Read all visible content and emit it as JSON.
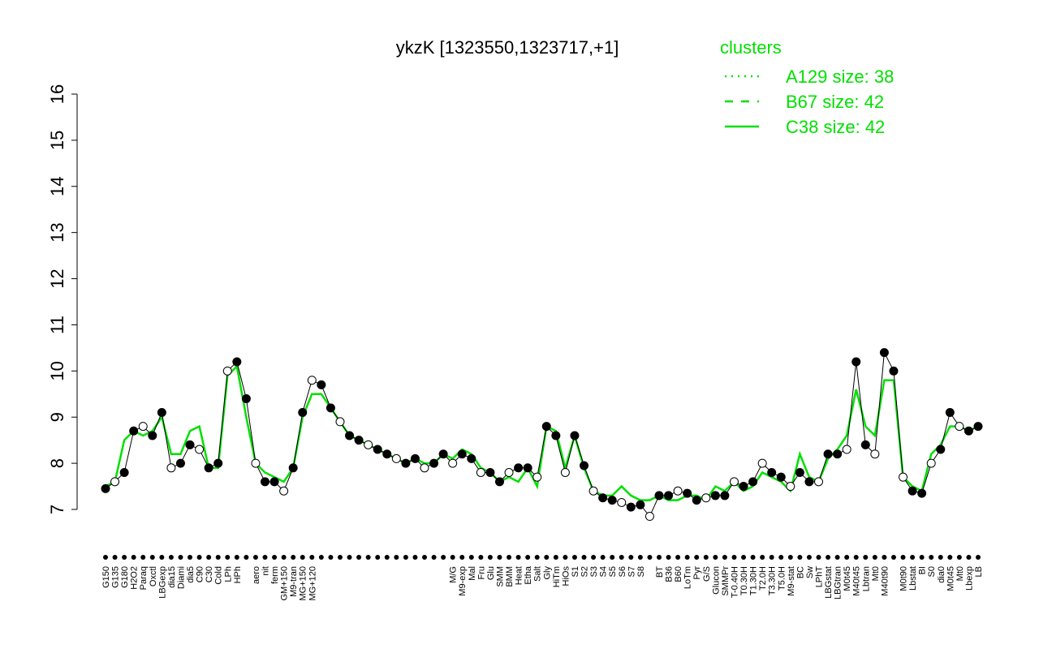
{
  "chart_data": {
    "type": "line",
    "title": "ykzK [1323550,1323717,+1]",
    "ylim": [
      7,
      16
    ],
    "yticks": [
      7,
      8,
      9,
      10,
      11,
      12,
      13,
      14,
      15,
      16
    ],
    "categories": [
      "G150",
      "G135",
      "G180",
      "H2O2",
      "Paraq",
      "Oxctl",
      "LBGexp",
      "dia15",
      "Diami",
      "dia5",
      "C90",
      "C30",
      "Cold",
      "LPh",
      "HPh",
      null,
      "aero",
      "nit",
      "ferm",
      "GM+150",
      "M9-tran",
      "MG+150",
      "MG+120",
      null,
      null,
      null,
      null,
      null,
      null,
      null,
      null,
      null,
      null,
      null,
      null,
      null,
      null,
      "M/G",
      "M9-exp",
      "Mal",
      "Fru",
      "Glu",
      "SMM",
      "BMM",
      "Heat",
      "Etha",
      "Salt",
      "Gly",
      "HiTm",
      "HiOs",
      "S1",
      "S2",
      "S3",
      "S4",
      "S5",
      "S6",
      "S7",
      "S8",
      null,
      "BT",
      "B36",
      "B60",
      "LoTm",
      "Pyr",
      "G/S",
      "Glucon",
      "SMMPr",
      "T-0.40H",
      "T0.30H",
      "T1.30H",
      "T2.0H",
      "T3.30H",
      "T5.0H",
      "M9-stat",
      "BC",
      "Sw",
      "LPhT",
      "LBGstat",
      "LBGtran",
      "M0t45",
      "M40t45",
      "Lbtran",
      "Mt0",
      "M40t90",
      null,
      "M0t90",
      "Lbstat",
      "BI",
      "S0",
      "dia0",
      "M0t45",
      "Mt0",
      "Lbexp",
      "LB"
    ],
    "values": [
      7.45,
      7.6,
      7.8,
      8.7,
      8.8,
      8.6,
      9.1,
      7.9,
      8.0,
      8.4,
      8.3,
      7.9,
      8.0,
      10.0,
      10.2,
      9.4,
      8.0,
      7.6,
      7.6,
      7.4,
      7.9,
      9.1,
      9.8,
      9.7,
      9.2,
      8.9,
      8.6,
      8.5,
      8.4,
      8.3,
      8.2,
      8.1,
      8.0,
      8.1,
      7.9,
      8.0,
      8.2,
      8.0,
      8.2,
      8.1,
      7.8,
      7.8,
      7.6,
      7.8,
      7.9,
      7.9,
      7.7,
      8.8,
      8.6,
      7.8,
      8.6,
      7.95,
      7.4,
      7.25,
      7.2,
      7.15,
      7.05,
      7.1,
      6.85,
      7.3,
      7.3,
      7.4,
      7.35,
      7.2,
      7.25,
      7.3,
      7.3,
      7.6,
      7.5,
      7.6,
      8.0,
      7.8,
      7.7,
      7.5,
      7.8,
      7.6,
      7.6,
      8.2,
      8.2,
      8.3,
      10.2,
      8.4,
      8.2,
      10.4,
      10.0,
      7.7,
      7.4,
      7.35,
      8.0,
      8.3,
      9.1,
      8.8,
      8.7,
      8.8
    ],
    "line": {
      "color": "#00e000",
      "values": [
        7.5,
        7.6,
        8.5,
        8.7,
        8.6,
        8.7,
        9.0,
        8.2,
        8.2,
        8.7,
        8.8,
        7.9,
        7.9,
        9.9,
        10.1,
        9.0,
        8.0,
        7.8,
        7.7,
        7.6,
        7.9,
        9.0,
        9.5,
        9.5,
        9.2,
        8.9,
        8.6,
        8.5,
        8.4,
        8.3,
        8.2,
        8.1,
        8.0,
        8.1,
        8.0,
        8.0,
        8.2,
        8.1,
        8.3,
        8.2,
        7.9,
        7.8,
        7.6,
        7.7,
        7.6,
        7.9,
        7.5,
        8.8,
        8.7,
        7.9,
        8.6,
        7.9,
        7.4,
        7.3,
        7.3,
        7.5,
        7.3,
        7.2,
        7.2,
        7.3,
        7.2,
        7.2,
        7.3,
        7.3,
        7.2,
        7.5,
        7.4,
        7.6,
        7.4,
        7.5,
        7.8,
        7.7,
        7.6,
        7.4,
        8.2,
        7.7,
        7.6,
        8.1,
        8.3,
        8.6,
        9.6,
        8.8,
        8.6,
        9.8,
        9.8,
        7.7,
        7.5,
        7.4,
        8.2,
        8.4,
        8.8,
        8.8,
        8.7,
        8.8
      ]
    },
    "legend": {
      "title": "clusters",
      "color": "#00e000",
      "entries": [
        {
          "label": "A129 size: 38",
          "dash": "2 6"
        },
        {
          "label": "B67 size: 42",
          "dash": "10 10"
        },
        {
          "label": "C38 size: 42",
          "dash": "none"
        }
      ]
    }
  }
}
